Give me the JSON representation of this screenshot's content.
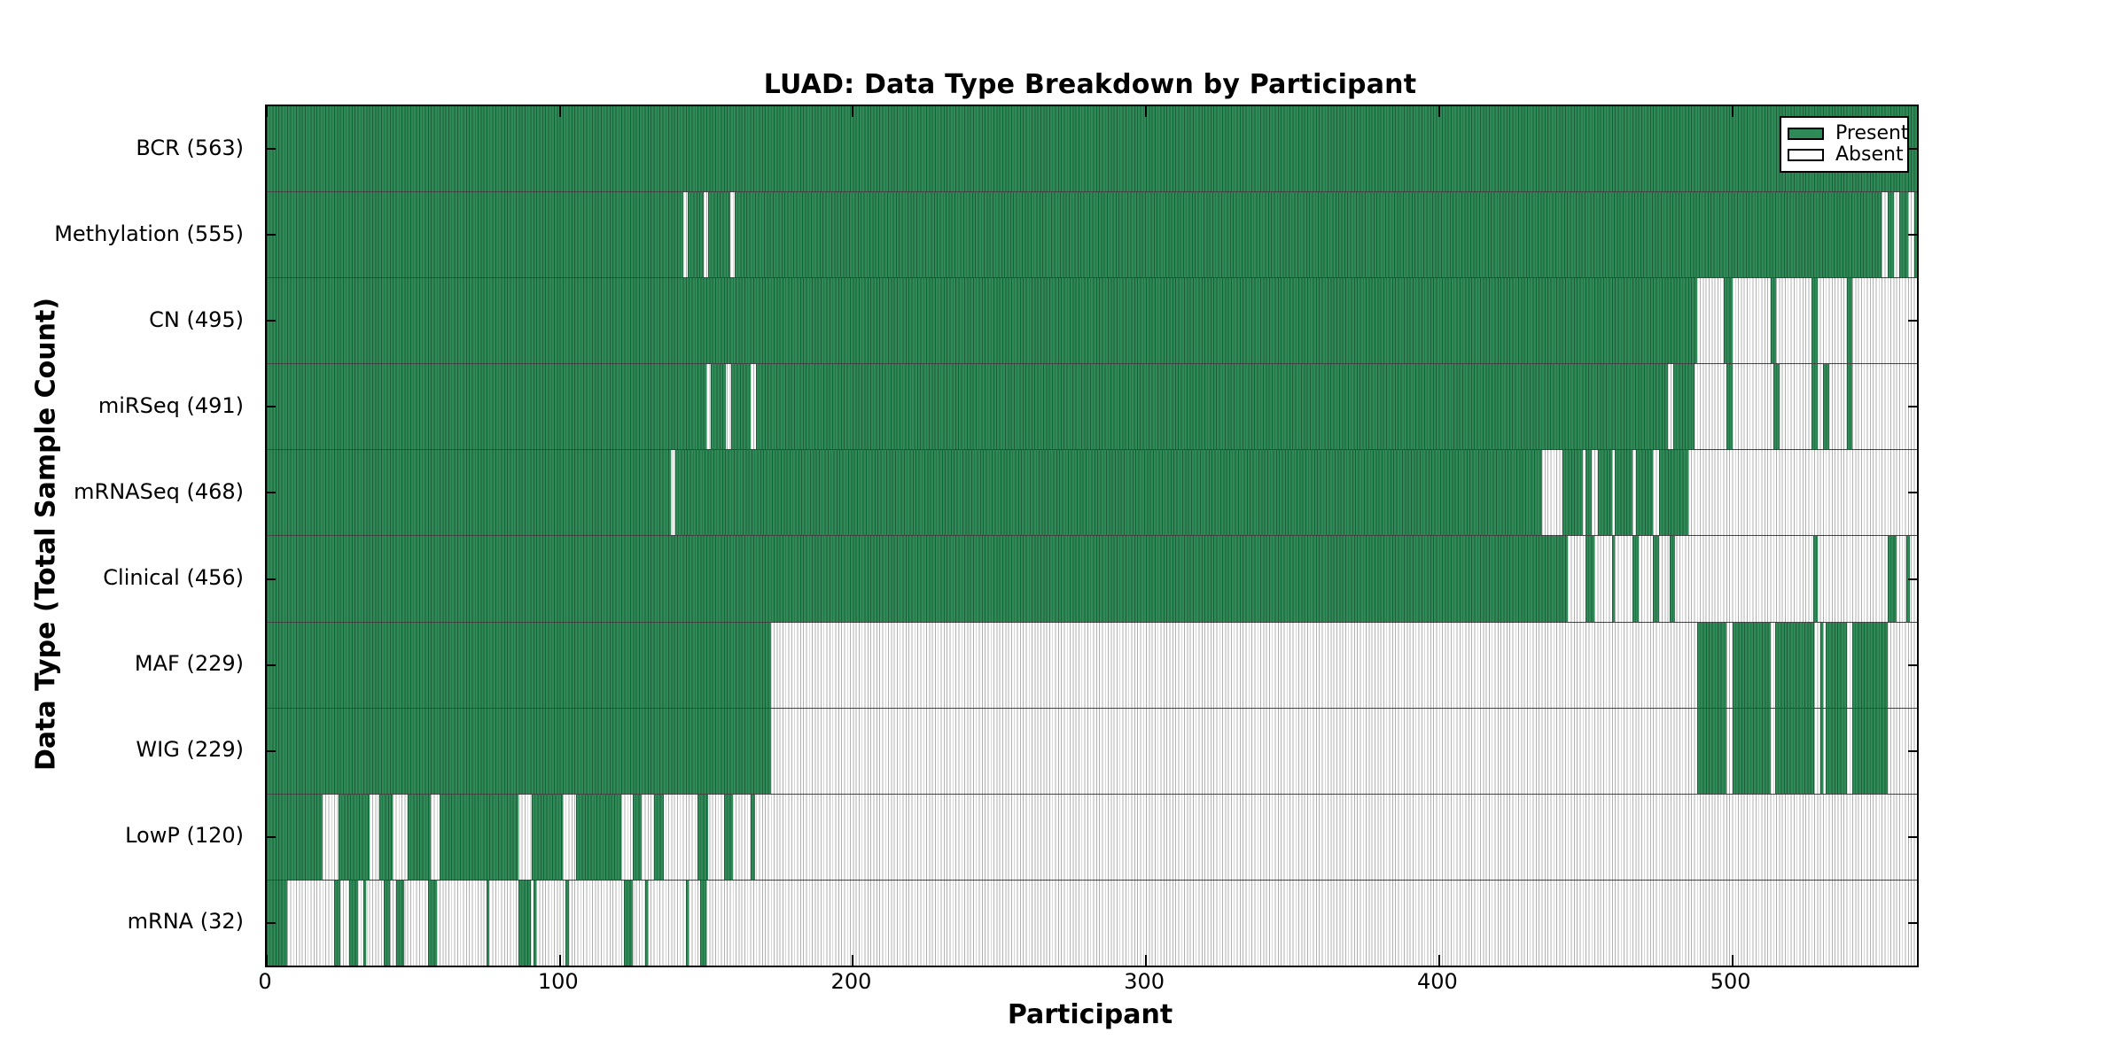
{
  "colors": {
    "present": "#2e8b57",
    "present_edge": "#1e5c3a",
    "absent": "#ffffff",
    "absent_edge": "#b0b0b0",
    "axis": "#000000"
  },
  "chart_data": {
    "type": "heatmap",
    "title": "LUAD: Data Type Breakdown by Participant",
    "xlabel": "Participant",
    "ylabel": "Data Type (Total Sample Count)",
    "x_range": [
      0,
      563
    ],
    "x_ticks": [
      0,
      100,
      200,
      300,
      400,
      500
    ],
    "grid": "row-separators-only",
    "legend_position": "upper-right-inside",
    "legend_entries": [
      {
        "label": "Present",
        "color": "#2e8b57"
      },
      {
        "label": "Absent",
        "color": "#ffffff"
      }
    ],
    "rows": [
      {
        "data_type": "BCR",
        "total": 563,
        "label": "BCR (563)",
        "present_segments": [
          [
            0,
            563
          ]
        ]
      },
      {
        "data_type": "Methylation",
        "total": 555,
        "label": "Methylation (555)",
        "present_segments": [
          [
            0,
            142
          ],
          [
            143.5,
            149
          ],
          [
            150.5,
            158
          ],
          [
            159.5,
            551
          ],
          [
            553,
            555
          ],
          [
            557,
            560
          ],
          [
            562,
            563
          ]
        ]
      },
      {
        "data_type": "CN",
        "total": 495,
        "label": "CN (495)",
        "present_segments": [
          [
            0,
            488
          ],
          [
            497,
            500
          ],
          [
            513,
            515
          ],
          [
            527,
            529
          ],
          [
            539,
            541
          ]
        ]
      },
      {
        "data_type": "miRSeq",
        "total": 491,
        "label": "miRSeq (491)",
        "present_segments": [
          [
            0,
            150
          ],
          [
            151.5,
            156.5
          ],
          [
            158.5,
            165
          ],
          [
            167,
            478
          ],
          [
            480,
            487
          ],
          [
            498,
            500
          ],
          [
            514,
            516
          ],
          [
            527,
            529
          ],
          [
            531,
            533
          ],
          [
            539,
            541
          ]
        ]
      },
      {
        "data_type": "mRNASeq",
        "total": 468,
        "label": "mRNASeq (468)",
        "present_segments": [
          [
            0,
            138
          ],
          [
            139.5,
            435
          ],
          [
            442,
            449
          ],
          [
            450,
            452
          ],
          [
            454,
            459
          ],
          [
            460,
            466
          ],
          [
            467,
            473
          ],
          [
            475,
            485
          ]
        ]
      },
      {
        "data_type": "Clinical",
        "total": 456,
        "label": "Clinical (456)",
        "present_segments": [
          [
            0,
            444
          ],
          [
            450,
            453
          ],
          [
            459,
            460
          ],
          [
            466,
            468
          ],
          [
            473,
            475
          ],
          [
            478.5,
            480.5
          ],
          [
            527.5,
            529
          ],
          [
            553,
            556
          ],
          [
            559.5,
            560.5
          ]
        ]
      },
      {
        "data_type": "MAF",
        "total": 229,
        "label": "MAF (229)",
        "present_segments": [
          [
            0,
            172
          ],
          [
            488,
            498
          ],
          [
            500,
            513
          ],
          [
            514.5,
            528
          ],
          [
            530,
            531
          ],
          [
            532,
            539
          ],
          [
            541,
            553
          ]
        ]
      },
      {
        "data_type": "WIG",
        "total": 229,
        "label": "WIG (229)",
        "present_segments": [
          [
            0,
            172
          ],
          [
            488,
            498
          ],
          [
            500,
            513
          ],
          [
            514.5,
            528
          ],
          [
            530,
            531
          ],
          [
            532,
            539
          ],
          [
            541,
            553
          ]
        ]
      },
      {
        "data_type": "LowP",
        "total": 120,
        "label": "LowP (120)",
        "present_segments": [
          [
            0,
            19
          ],
          [
            24.5,
            35
          ],
          [
            38.5,
            43
          ],
          [
            48,
            56
          ],
          [
            59,
            86
          ],
          [
            90.5,
            101
          ],
          [
            105.5,
            121
          ],
          [
            125,
            128
          ],
          [
            132,
            135.5
          ],
          [
            147,
            150.5
          ],
          [
            156,
            159
          ],
          [
            165,
            166.5
          ]
        ]
      },
      {
        "data_type": "mRNA",
        "total": 32,
        "label": "mRNA (32)",
        "present_segments": [
          [
            0,
            7
          ],
          [
            23,
            25
          ],
          [
            28,
            31
          ],
          [
            33,
            34
          ],
          [
            40,
            42
          ],
          [
            44,
            47
          ],
          [
            55,
            58
          ],
          [
            75,
            76
          ],
          [
            86,
            90
          ],
          [
            91,
            92
          ],
          [
            102,
            103
          ],
          [
            122,
            125
          ],
          [
            129,
            130
          ],
          [
            143,
            144
          ],
          [
            148,
            150
          ]
        ]
      }
    ]
  }
}
